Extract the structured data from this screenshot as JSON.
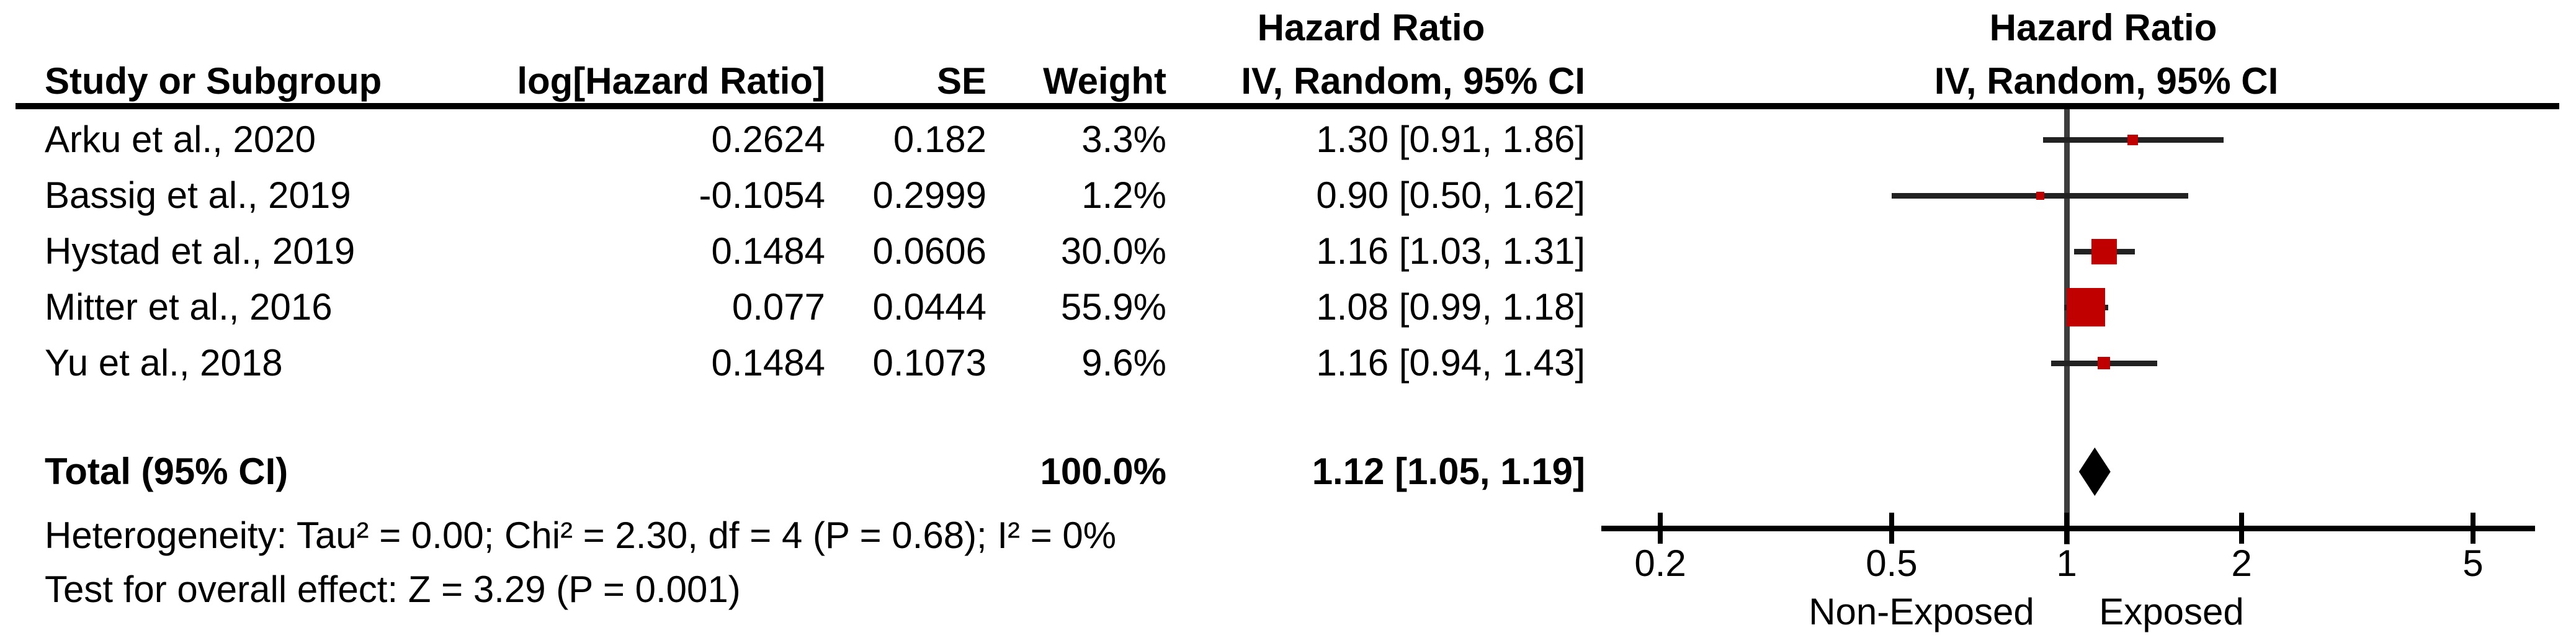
{
  "table": {
    "header": {
      "hazard_ratio": "Hazard Ratio",
      "study": "Study or Subgroup",
      "log_hr": "log[Hazard Ratio]",
      "se": "SE",
      "weight": "Weight",
      "ci": "IV, Random, 95% CI"
    },
    "rows": [
      {
        "study": "Arku et al., 2020",
        "log_hr": "0.2624",
        "se": "0.182",
        "weight": "3.3%",
        "ci": "1.30 [0.91, 1.86]"
      },
      {
        "study": "Bassig et al., 2019",
        "log_hr": "-0.1054",
        "se": "0.2999",
        "weight": "1.2%",
        "ci": "0.90 [0.50, 1.62]"
      },
      {
        "study": "Hystad et al., 2019",
        "log_hr": "0.1484",
        "se": "0.0606",
        "weight": "30.0%",
        "ci": "1.16 [1.03, 1.31]"
      },
      {
        "study": "Mitter et al., 2016",
        "log_hr": "0.077",
        "se": "0.0444",
        "weight": "55.9%",
        "ci": "1.08 [0.99, 1.18]"
      },
      {
        "study": "Yu et al., 2018",
        "log_hr": "0.1484",
        "se": "0.1073",
        "weight": "9.6%",
        "ci": "1.16 [0.94, 1.43]"
      }
    ],
    "total": {
      "label": "Total (95% CI)",
      "weight": "100.0%",
      "ci": "1.12 [1.05, 1.19]"
    },
    "heterogeneity": "Heterogeneity: Tau² = 0.00; Chi² = 2.30, df = 4 (P = 0.68); I² = 0%",
    "overall_effect": "Test for overall effect: Z = 3.29 (P = 0.001)"
  },
  "plot": {
    "header": {
      "hazard_ratio": "Hazard Ratio",
      "ci": "IV, Random, 95% CI"
    },
    "x_tick_labels": [
      "0.2",
      "0.5",
      "1",
      "2",
      "5"
    ],
    "left_label": "Non-Exposed",
    "right_label": "Exposed",
    "marker_color": "#C00000",
    "diamond_color": "#000000",
    "ci_line_color": "#222222",
    "axis_color": "#000000",
    "center_line_color": "#3d3d3d"
  },
  "chart_data": {
    "type": "forest",
    "effect_measure": "Hazard Ratio",
    "model": "IV, Random, 95% CI",
    "x_scale": "log",
    "x_ticks": [
      0.2,
      0.5,
      1,
      2,
      5
    ],
    "x_axis_left_label": "Non-Exposed",
    "x_axis_right_label": "Exposed",
    "studies": [
      {
        "name": "Arku et al., 2020",
        "log_hr": 0.2624,
        "se": 0.182,
        "weight_pct": 3.3,
        "hr": 1.3,
        "ci_low": 0.91,
        "ci_high": 1.86
      },
      {
        "name": "Bassig et al., 2019",
        "log_hr": -0.1054,
        "se": 0.2999,
        "weight_pct": 1.2,
        "hr": 0.9,
        "ci_low": 0.5,
        "ci_high": 1.62
      },
      {
        "name": "Hystad et al., 2019",
        "log_hr": 0.1484,
        "se": 0.0606,
        "weight_pct": 30.0,
        "hr": 1.16,
        "ci_low": 1.03,
        "ci_high": 1.31
      },
      {
        "name": "Mitter et al., 2016",
        "log_hr": 0.077,
        "se": 0.0444,
        "weight_pct": 55.9,
        "hr": 1.08,
        "ci_low": 0.99,
        "ci_high": 1.18
      },
      {
        "name": "Yu et al., 2018",
        "log_hr": 0.1484,
        "se": 0.1073,
        "weight_pct": 9.6,
        "hr": 1.16,
        "ci_low": 0.94,
        "ci_high": 1.43
      }
    ],
    "total": {
      "label": "Total (95% CI)",
      "weight_pct": 100.0,
      "hr": 1.12,
      "ci_low": 1.05,
      "ci_high": 1.19
    },
    "heterogeneity": {
      "tau2": 0.0,
      "chi2": 2.3,
      "df": 4,
      "p": 0.68,
      "i2_pct": 0
    },
    "overall_effect": {
      "z": 3.29,
      "p": 0.001
    }
  }
}
